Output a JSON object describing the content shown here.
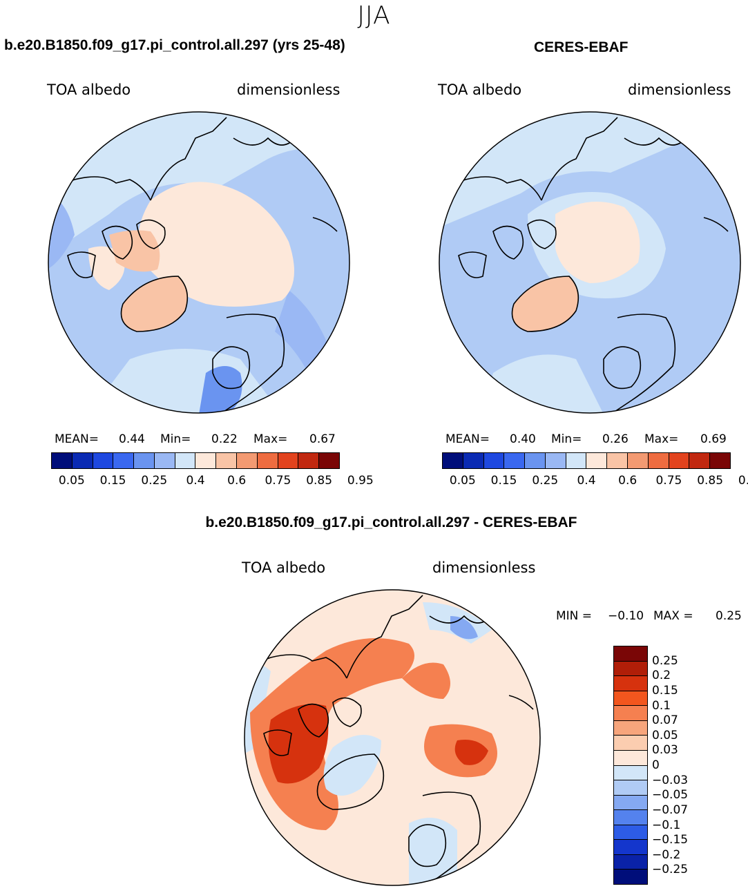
{
  "figure": {
    "season": "JJA",
    "panels": [
      {
        "title": "b.e20.B1850.f09_g17.pi_control.all.297 (yrs 25-48)",
        "variable": "TOA albedo",
        "units": "dimensionless",
        "mean_label": "MEAN=",
        "mean_value": "0.44",
        "min_label": "Min=",
        "min_value": "0.22",
        "max_label": "Max=",
        "max_value": "0.67"
      },
      {
        "title": "CERES-EBAF",
        "variable": "TOA albedo",
        "units": "dimensionless",
        "mean_label": "MEAN=",
        "mean_value": "0.40",
        "min_label": "Min=",
        "min_value": "0.26",
        "max_label": "Max=",
        "max_value": "0.69"
      }
    ],
    "diff_panel": {
      "title": "b.e20.B1850.f09_g17.pi_control.all.297 - CERES-EBAF",
      "variable": "TOA albedo",
      "units": "dimensionless",
      "min_label": "MIN =",
      "min_value": "−0.10",
      "max_label": "MAX =",
      "max_value": "0.25"
    },
    "abs_colorbar": {
      "colors": [
        "#000e7a",
        "#0a2ab3",
        "#1e48e0",
        "#3a68f0",
        "#6a94f0",
        "#9ab8f4",
        "#d2e6f8",
        "#fde8da",
        "#f9c4a6",
        "#f39a72",
        "#ee6c40",
        "#e2431e",
        "#c12810",
        "#7a0606"
      ],
      "tick_labels": [
        "0.05",
        "0.15",
        "0.25",
        "0.4",
        "0.6",
        "0.75",
        "0.85",
        "0.95"
      ]
    },
    "diff_colorbar": {
      "colors": [
        "#7a0606",
        "#b01e08",
        "#d6320e",
        "#f2561e",
        "#f58050",
        "#f7a57c",
        "#fbcdb0",
        "#fde8da",
        "#d2e6f8",
        "#b0cbf5",
        "#85a9f2",
        "#5482ee",
        "#2d5ce6",
        "#1436cc",
        "#0a22a8",
        "#000e7a"
      ],
      "tick_labels": [
        "0.25",
        "0.2",
        "0.15",
        "0.1",
        "0.07",
        "0.05",
        "0.03",
        "0",
        "−0.03",
        "−0.05",
        "−0.07",
        "−0.1",
        "−0.15",
        "−0.2",
        "−0.25"
      ]
    }
  }
}
